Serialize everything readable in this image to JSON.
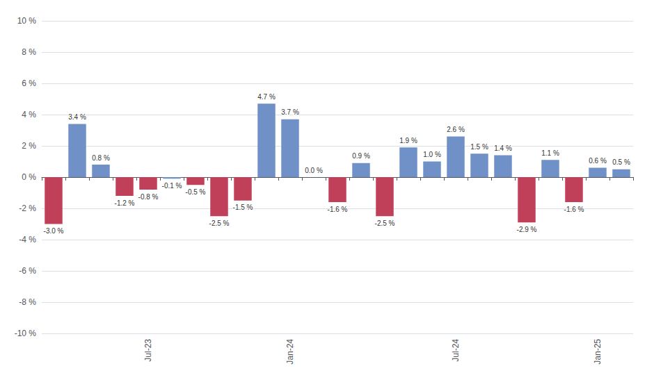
{
  "chart_data": {
    "type": "bar",
    "categories": [
      null,
      null,
      null,
      null,
      "Jul-23",
      null,
      null,
      null,
      null,
      null,
      "Jan-24",
      null,
      null,
      null,
      null,
      null,
      null,
      "Jul-24",
      null,
      null,
      null,
      null,
      null,
      "Jan-25",
      null
    ],
    "values": [
      -3.0,
      3.4,
      0.8,
      -1.2,
      -0.8,
      -0.1,
      -0.5,
      -2.5,
      -1.5,
      4.7,
      3.7,
      0.0,
      -1.6,
      0.9,
      -2.5,
      1.9,
      1.0,
      2.6,
      1.5,
      1.4,
      -2.9,
      1.1,
      -1.6,
      0.6,
      0.5
    ],
    "value_labels": [
      "-3.0 %",
      "3.4 %",
      "0.8 %",
      "-1.2 %",
      "-0.8 %",
      "-0.1 %",
      "-0.5 %",
      "-2.5 %",
      "-1.5 %",
      "4.7 %",
      "3.7 %",
      "0.0 %",
      "-1.6 %",
      "0.9 %",
      "-2.5 %",
      "1.9 %",
      "1.0 %",
      "2.6 %",
      "1.5 %",
      "1.4 %",
      "-2.9 %",
      "1.1 %",
      "-1.6 %",
      "0.6 %",
      "0.5 %"
    ],
    "colors": [
      "#c0405a",
      "#7090c8",
      "#7090c8",
      "#c0405a",
      "#c0405a",
      "#7090c8",
      "#c0405a",
      "#c0405a",
      "#c0405a",
      "#7090c8",
      "#7090c8",
      "#7090c8",
      "#c0405a",
      "#7090c8",
      "#c0405a",
      "#7090c8",
      "#7090c8",
      "#7090c8",
      "#7090c8",
      "#7090c8",
      "#c0405a",
      "#7090c8",
      "#c0405a",
      "#7090c8",
      "#7090c8"
    ],
    "ylim": [
      -10,
      10
    ],
    "yticks": [
      {
        "value": -10,
        "label": "-10 %"
      },
      {
        "value": -8,
        "label": "-8 %"
      },
      {
        "value": -6,
        "label": "-6 %"
      },
      {
        "value": -4,
        "label": "-4 %"
      },
      {
        "value": -2,
        "label": "-2 %"
      },
      {
        "value": 0,
        "label": "0 %"
      },
      {
        "value": 2,
        "label": "2 %"
      },
      {
        "value": 4,
        "label": "4 %"
      },
      {
        "value": 6,
        "label": "6 %"
      },
      {
        "value": 8,
        "label": "8 %"
      },
      {
        "value": 10,
        "label": "10 %"
      }
    ],
    "grid": true,
    "data_labels": true
  }
}
